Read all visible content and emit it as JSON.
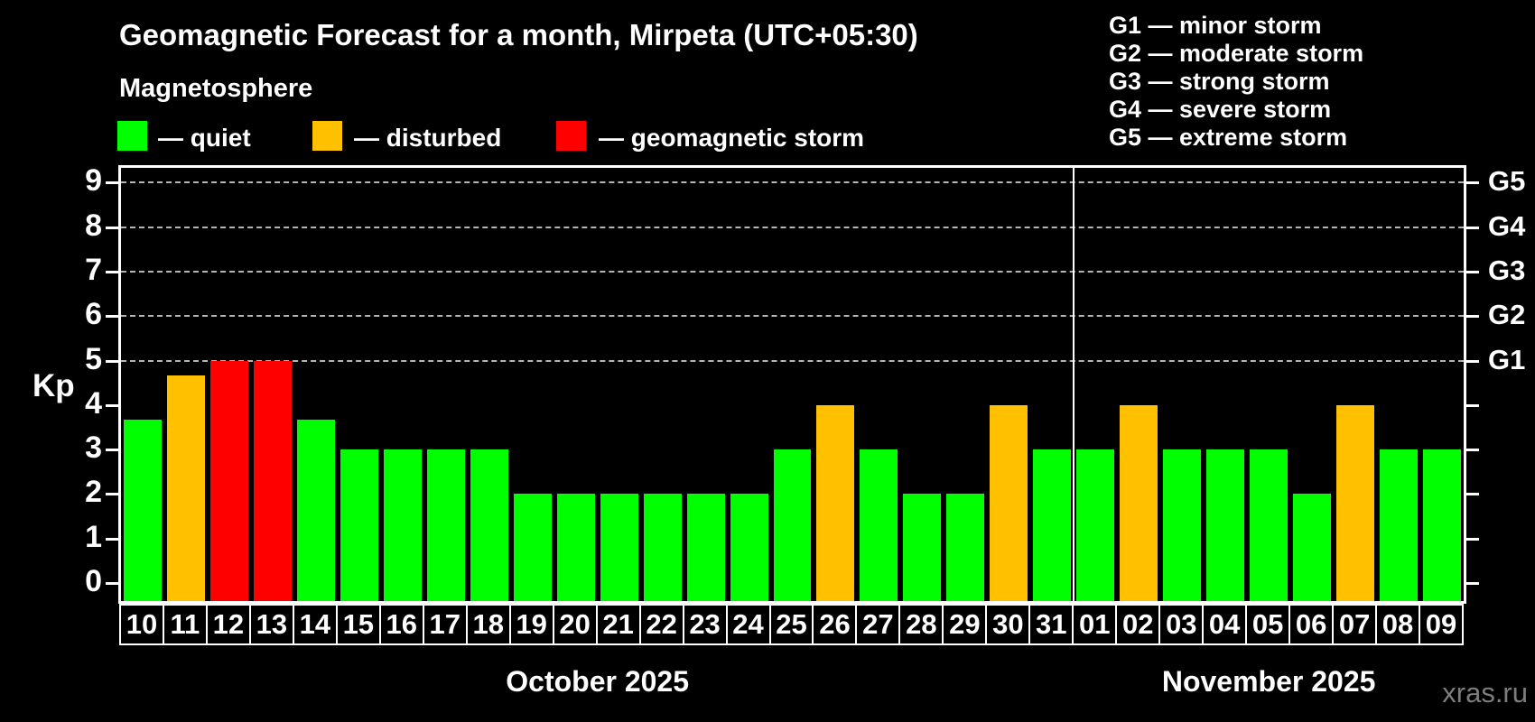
{
  "header": {
    "title": "Geomagnetic Forecast for a month, Mirpeta (UTC+05:30)",
    "subtitle": "Magnetosphere"
  },
  "legend": {
    "items": [
      {
        "name": "quiet",
        "label": "— quiet",
        "color": "#00ff00"
      },
      {
        "name": "disturbed",
        "label": "— disturbed",
        "color": "#ffc000"
      },
      {
        "name": "storm",
        "label": "— geomagnetic storm",
        "color": "#ff0000"
      }
    ]
  },
  "storm_scale_legend": {
    "items": [
      "G1 — minor storm",
      "G2 — moderate storm",
      "G3 — strong storm",
      "G4 — severe storm",
      "G5 — extreme storm"
    ]
  },
  "watermark": "xras.ru",
  "chart_data": {
    "type": "bar",
    "title": "Geomagnetic Forecast for a month, Mirpeta (UTC+05:30)",
    "ylabel": "Kp",
    "ylim": [
      0,
      9.4
    ],
    "yticks": [
      0,
      1,
      2,
      3,
      4,
      5,
      6,
      7,
      8,
      9
    ],
    "grid": "horizontal dashed gridlines at Kp 5-9 only",
    "gridline_levels": [
      5,
      6,
      7,
      8,
      9
    ],
    "right_axis": [
      {
        "label": "G1",
        "kp": 5
      },
      {
        "label": "G2",
        "kp": 6
      },
      {
        "label": "G3",
        "kp": 7
      },
      {
        "label": "G4",
        "kp": 8
      },
      {
        "label": "G5",
        "kp": 9
      }
    ],
    "status_colors": {
      "quiet": "#00ff00",
      "disturbed": "#ffc000",
      "storm": "#ff0000"
    },
    "months": [
      {
        "label": "October 2025",
        "days": 22
      },
      {
        "label": "November 2025",
        "days": 9
      }
    ],
    "bars": [
      {
        "day": "10",
        "kp": 3.67,
        "status": "quiet"
      },
      {
        "day": "11",
        "kp": 4.67,
        "status": "disturbed"
      },
      {
        "day": "12",
        "kp": 5,
        "status": "storm"
      },
      {
        "day": "13",
        "kp": 5,
        "status": "storm"
      },
      {
        "day": "14",
        "kp": 3.67,
        "status": "quiet"
      },
      {
        "day": "15",
        "kp": 3,
        "status": "quiet"
      },
      {
        "day": "16",
        "kp": 3,
        "status": "quiet"
      },
      {
        "day": "17",
        "kp": 3,
        "status": "quiet"
      },
      {
        "day": "18",
        "kp": 3,
        "status": "quiet"
      },
      {
        "day": "19",
        "kp": 2,
        "status": "quiet"
      },
      {
        "day": "20",
        "kp": 2,
        "status": "quiet"
      },
      {
        "day": "21",
        "kp": 2,
        "status": "quiet"
      },
      {
        "day": "22",
        "kp": 2,
        "status": "quiet"
      },
      {
        "day": "23",
        "kp": 2,
        "status": "quiet"
      },
      {
        "day": "24",
        "kp": 2,
        "status": "quiet"
      },
      {
        "day": "25",
        "kp": 3,
        "status": "quiet"
      },
      {
        "day": "26",
        "kp": 4,
        "status": "disturbed"
      },
      {
        "day": "27",
        "kp": 3,
        "status": "quiet"
      },
      {
        "day": "28",
        "kp": 2,
        "status": "quiet"
      },
      {
        "day": "29",
        "kp": 2,
        "status": "quiet"
      },
      {
        "day": "30",
        "kp": 4,
        "status": "disturbed"
      },
      {
        "day": "31",
        "kp": 3,
        "status": "quiet"
      },
      {
        "day": "01",
        "kp": 3,
        "status": "quiet"
      },
      {
        "day": "02",
        "kp": 4,
        "status": "disturbed"
      },
      {
        "day": "03",
        "kp": 3,
        "status": "quiet"
      },
      {
        "day": "04",
        "kp": 3,
        "status": "quiet"
      },
      {
        "day": "05",
        "kp": 3,
        "status": "quiet"
      },
      {
        "day": "06",
        "kp": 2,
        "status": "quiet"
      },
      {
        "day": "07",
        "kp": 4,
        "status": "disturbed"
      },
      {
        "day": "08",
        "kp": 3,
        "status": "quiet"
      },
      {
        "day": "09",
        "kp": 3,
        "status": "quiet"
      }
    ]
  }
}
